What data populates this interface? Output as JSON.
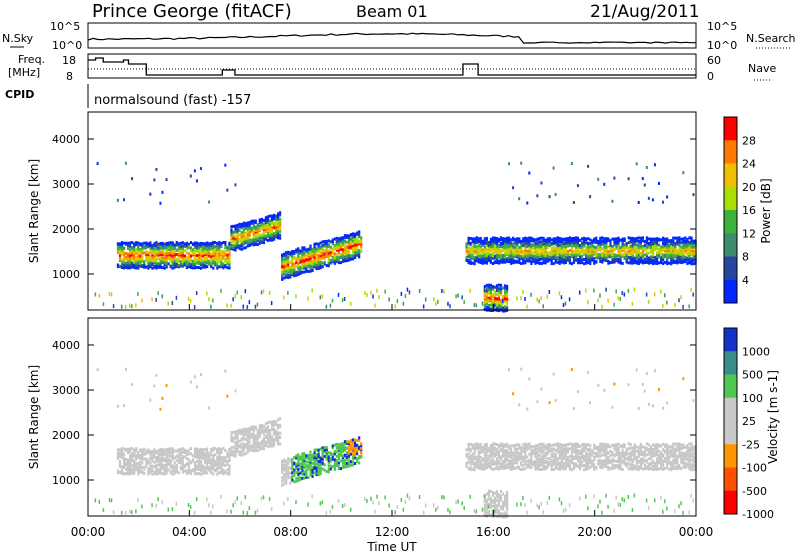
{
  "header": {
    "station": "Prince George (fitACF)",
    "beam": "Beam 01",
    "date": "21/Aug/2011"
  },
  "panels": {
    "nsky_label": "N.Sky",
    "nsearch_label": "N.Search",
    "nsky_ticks": [
      "10^5",
      "10^0"
    ],
    "nsearch_ticks": [
      "10^5",
      "10^0"
    ],
    "freq_label": "Freq.",
    "freq_unit": "[MHz]",
    "freq_ticks": [
      "18",
      "8"
    ],
    "nave_label": "Nave",
    "nave_ticks": [
      "60",
      "0"
    ],
    "cpid_label": "CPID",
    "cpid_text": "normalsound (fast) -157"
  },
  "chart_data": [
    {
      "type": "heatmap",
      "name": "power",
      "ylabel": "Slant Range [km]",
      "yticks": [
        "4000",
        "3000",
        "2000",
        "1000"
      ],
      "ylim": [
        200,
        4600
      ],
      "colorbar": {
        "label": "Power [dB]",
        "ticks": [
          "28",
          "24",
          "20",
          "16",
          "12",
          "8",
          "4"
        ],
        "colors": [
          "#ff0000",
          "#ff7a00",
          "#f0c000",
          "#aade00",
          "#3cb43c",
          "#3c8c6e",
          "#2846a0",
          "#0028ff"
        ]
      },
      "bands": [
        {
          "t0": 1.1,
          "t1": 5.6,
          "r_center": 1450,
          "peak_db": 28
        },
        {
          "t0": 5.6,
          "t1": 7.6,
          "r_center": 1800,
          "peak_db": 24
        },
        {
          "t0": 7.6,
          "t1": 10.8,
          "r_center": 1200,
          "peak_db": 28
        },
        {
          "t0": 14.9,
          "t1": 24.0,
          "r_center": 1550,
          "peak_db": 20
        },
        {
          "t0": 15.6,
          "t1": 16.5,
          "r_center": 500,
          "peak_db": 28
        }
      ]
    },
    {
      "type": "heatmap",
      "name": "velocity",
      "xlabel": "Time UT",
      "xticks": [
        "00:00",
        "04:00",
        "08:00",
        "12:00",
        "16:00",
        "20:00",
        "00:00"
      ],
      "xlim": [
        0,
        24
      ],
      "ylabel": "Slant Range [km]",
      "yticks": [
        "4000",
        "3000",
        "2000",
        "1000"
      ],
      "ylim": [
        200,
        4600
      ],
      "colorbar": {
        "label": "Velocity [m s-1]",
        "ticks": [
          "1000",
          "500",
          "100",
          "25",
          "-25",
          "-100",
          "-500",
          "-1000"
        ],
        "colors": [
          "#1432c8",
          "#3c8c8c",
          "#50c850",
          "#c8c8c8",
          "#c8c8c8",
          "#ff9600",
          "#ff5000",
          "#ff0000"
        ]
      },
      "bands": [
        {
          "t0": 8.0,
          "t1": 11.4,
          "r_center": 1300,
          "velocity": 150
        },
        {
          "t0": 10.2,
          "t1": 11.4,
          "r_center": 1900,
          "velocity": -300
        }
      ]
    }
  ]
}
